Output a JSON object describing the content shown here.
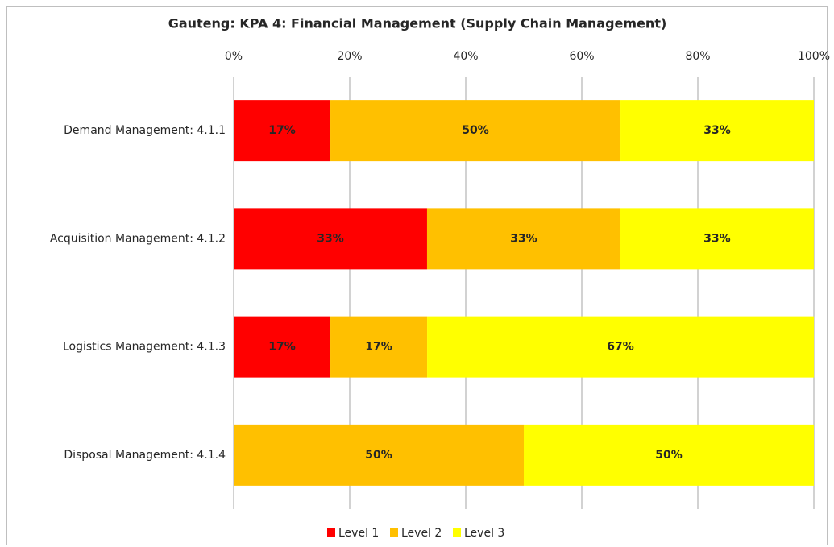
{
  "chart_data": {
    "type": "stacked_barh",
    "title": "Gauteng: KPA 4: Financial Management (Supply Chain Management)",
    "categories": [
      "Demand Management: 4.1.1",
      "Acquisition Management: 4.1.2",
      "Logistics Management: 4.1.3",
      "Disposal Management: 4.1.4"
    ],
    "series": [
      {
        "name": "Level 1",
        "color": "#ff0000",
        "label_color": "#ffffff",
        "values": [
          16.67,
          33.33,
          16.67,
          0
        ],
        "value_labels": [
          "17%",
          "33%",
          "17%",
          null
        ]
      },
      {
        "name": "Level 2",
        "color": "#ffc000",
        "label_color": "#262626",
        "values": [
          50,
          33.33,
          16.67,
          50
        ],
        "value_labels": [
          "50%",
          "33%",
          "17%",
          "50%"
        ]
      },
      {
        "name": "Level 3",
        "color": "#ffff00",
        "label_color": "#262626",
        "values": [
          33.33,
          33.33,
          66.67,
          50
        ],
        "value_labels": [
          "33%",
          "33%",
          "67%",
          "50%"
        ]
      }
    ],
    "xlim": [
      0,
      100
    ],
    "xticks": [
      {
        "value": 0,
        "label": "0%"
      },
      {
        "value": 20,
        "label": "20%"
      },
      {
        "value": 40,
        "label": "40%"
      },
      {
        "value": 60,
        "label": "60%"
      },
      {
        "value": 80,
        "label": "80%"
      },
      {
        "value": 100,
        "label": "100%"
      }
    ],
    "grid": true,
    "legend": "bottom"
  }
}
